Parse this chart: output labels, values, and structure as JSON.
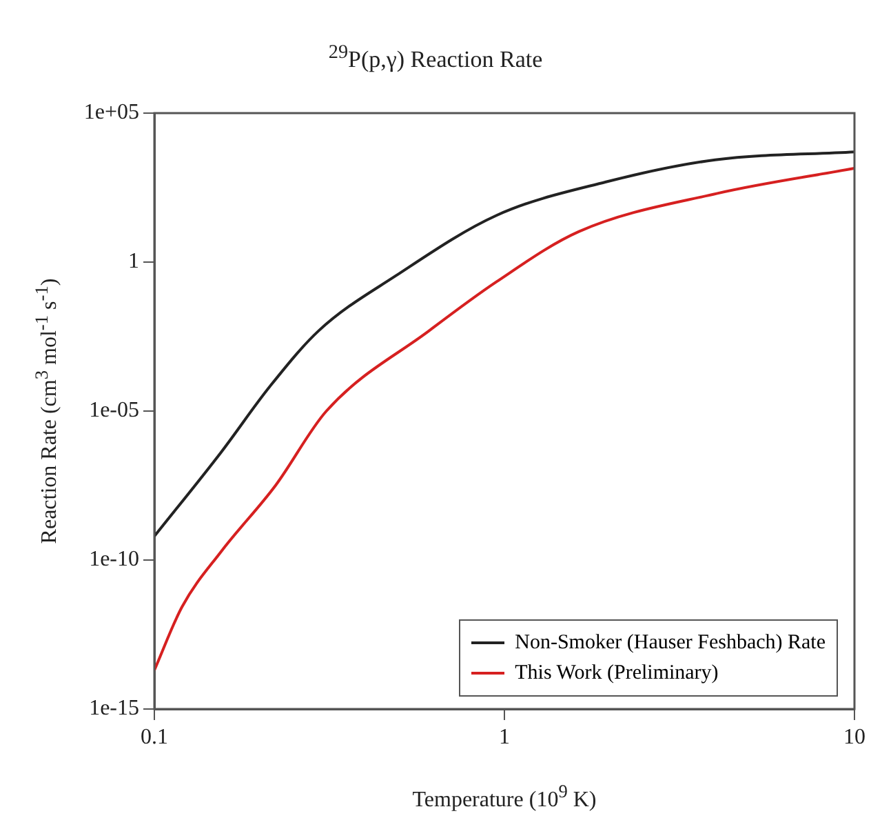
{
  "chart_data": {
    "type": "line",
    "title": "$^{29}$P(p,γ) Reaction Rate",
    "xlabel": "Temperature (10$^{9}$ K)",
    "ylabel": "Reaction Rate (cm$^{3}$ mol$^{-1}$ s$^{-1}$)",
    "log": "xy",
    "xlim": [
      0.1,
      10
    ],
    "xticks": [
      0.1,
      1,
      10
    ],
    "ylim": [
      1e-15,
      100000
    ],
    "yticks": [
      {
        "value": 1e-15,
        "label": "1e-15"
      },
      {
        "value": 1e-10,
        "label": "1e-10"
      },
      {
        "value": 1e-05,
        "label": "1e-05"
      },
      1,
      {
        "value": 100000,
        "label": "1e+05"
      }
    ],
    "grid": false,
    "legend": "bottom right",
    "marker": "none",
    "line_style": "solid",
    "series": [
      {
        "name": "Non-Smoker (Hauser Feshbach) Rate",
        "color": "#222222",
        "x": [
          0.1,
          0.155,
          0.214,
          0.295,
          0.49,
          0.95,
          1.95,
          4.0,
          10
        ],
        "values": [
          6.3e-10,
          4.1e-07,
          6.8e-05,
          0.005,
          0.35,
          37,
          490,
          2700,
          5000
        ]
      },
      {
        "name": "This Work (Preliminary)",
        "color": "#d62020",
        "x": [
          0.1,
          0.12,
          0.155,
          0.222,
          0.31,
          0.61,
          0.95,
          1.63,
          4.04,
          10
        ],
        "values": [
          2e-14,
          2.7e-12,
          1.9e-10,
          3.2e-08,
          1e-05,
          0.005,
          0.22,
          10.5,
          200,
          1400
        ]
      }
    ]
  }
}
